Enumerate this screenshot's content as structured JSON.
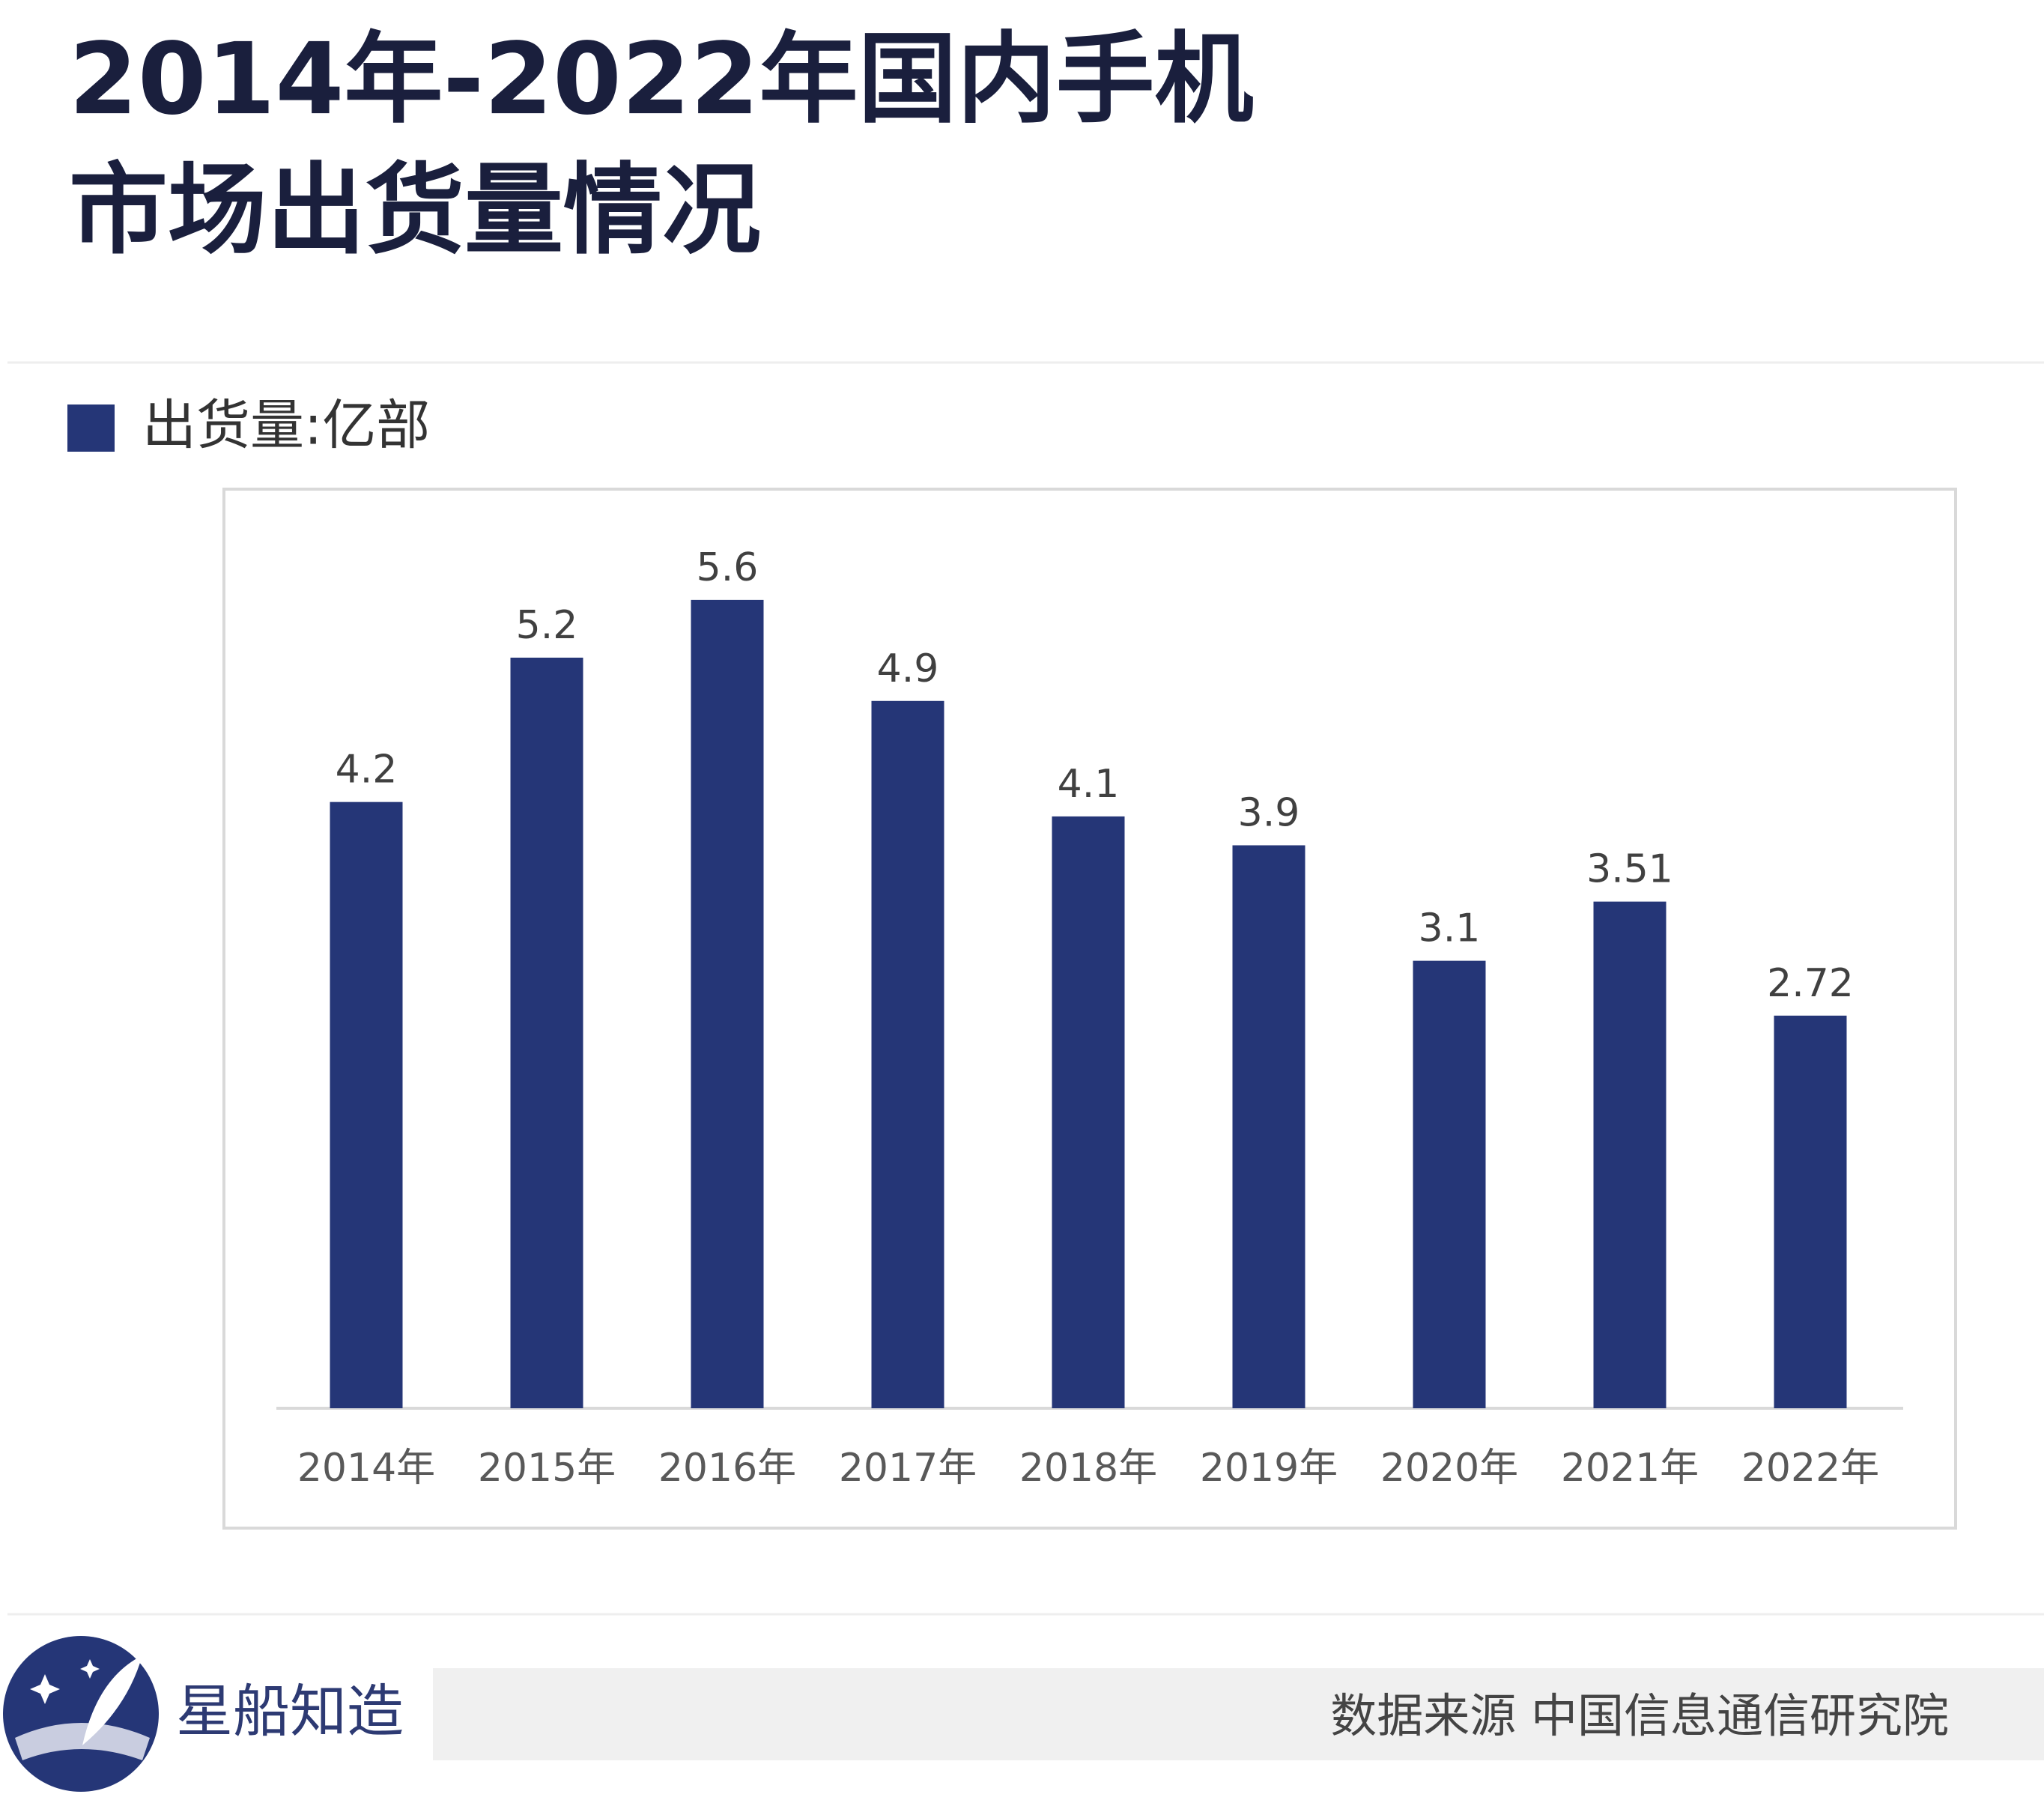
{
  "chart_data": {
    "type": "bar",
    "title_lines": [
      "2014年-2022年国内手机",
      "市场出货量情况"
    ],
    "categories": [
      "2014年",
      "2015年",
      "2016年",
      "2017年",
      "2018年",
      "2019年",
      "2020年",
      "2021年",
      "2022年"
    ],
    "series": [
      {
        "name": "出货量:亿部",
        "color": "#253677",
        "values": [
          4.2,
          5.2,
          5.6,
          4.9,
          4.1,
          3.9,
          3.1,
          3.51,
          2.72
        ]
      }
    ]
  },
  "footer": {
    "brand": "星船知造",
    "source": "数据来源  中国信息通信研究院"
  }
}
